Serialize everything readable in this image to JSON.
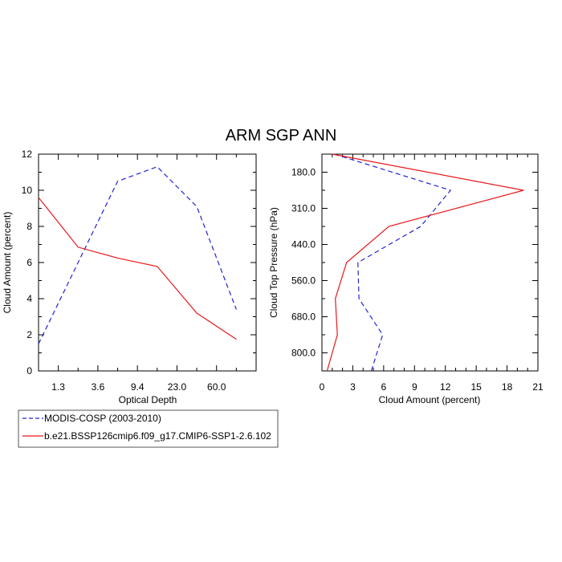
{
  "title": "ARM SGP ANN",
  "colors": {
    "obs": "#2323d8",
    "model": "#e8181b",
    "axis": "#000000"
  },
  "legend": [
    {
      "label": "MODIS-COSP (2003-2010)",
      "style": "dashed",
      "color": "#2323d8"
    },
    {
      "label": "b.e21.BSSP126cmip6.f09_g17.CMIP6-SSP1-2.6.102",
      "style": "solid",
      "color": "#e8181b"
    }
  ],
  "chart_data": [
    {
      "type": "line",
      "xlabel": "Optical Depth",
      "ylabel": "Cloud Amount (percent)",
      "x_categories": [
        "1.3",
        "3.6",
        "9.4",
        "23.0",
        "60.0"
      ],
      "ylim": [
        0,
        12
      ],
      "yticks": [
        "0",
        "2",
        "4",
        "6",
        "8",
        "10",
        "12"
      ],
      "series": [
        {
          "name": "MODIS-COSP (2003-2010)",
          "style": "dashed",
          "color": "#2323d8",
          "x": [
            0,
            2,
            3,
            4,
            5
          ],
          "y": [
            1.5,
            10.5,
            11.3,
            9.1,
            3.4
          ]
        },
        {
          "name": "b.e21.BSSP126cmip6.f09_g17.CMIP6-SSP1-2.6.102",
          "style": "solid",
          "color": "#e8181b",
          "x": [
            0,
            1,
            2,
            3,
            4,
            5
          ],
          "y": [
            9.6,
            6.85,
            6.25,
            5.78,
            3.2,
            1.75
          ]
        }
      ]
    },
    {
      "type": "line",
      "xlabel": "Cloud Amount (percent)",
      "ylabel": "Cloud Top Pressure (hPa)",
      "xlim": [
        0,
        21
      ],
      "xticks": [
        "0",
        "3",
        "6",
        "9",
        "12",
        "15",
        "18",
        "21"
      ],
      "y_categories": [
        "180.0",
        "310.0",
        "440.0",
        "560.0",
        "680.0",
        "800.0"
      ],
      "series": [
        {
          "name": "MODIS-COSP (2003-2010)",
          "style": "dashed",
          "color": "#2323d8",
          "x": [
            1.2,
            12.5,
            9.6,
            3.5,
            3.6,
            5.9,
            4.8
          ],
          "y": [
            0,
            1,
            2,
            3,
            4,
            5,
            6
          ]
        },
        {
          "name": "b.e21.BSSP126cmip6.f09_g17.CMIP6-SSP1-2.6.102",
          "style": "solid",
          "color": "#e8181b",
          "x": [
            1.0,
            19.6,
            6.5,
            2.4,
            1.3,
            1.5,
            0.5
          ],
          "y": [
            0,
            1,
            2,
            3,
            4,
            5,
            6
          ]
        }
      ]
    }
  ]
}
